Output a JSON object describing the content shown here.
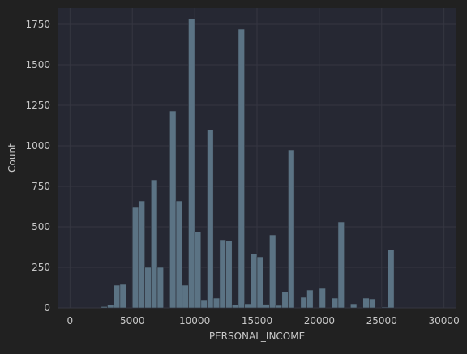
{
  "chart_data": {
    "type": "bar",
    "title": "",
    "xlabel": "PERSONAL_INCOME",
    "ylabel": "Count",
    "xlim": [
      -1000,
      31000
    ],
    "ylim": [
      0,
      1850
    ],
    "xticks": [
      0,
      5000,
      10000,
      15000,
      20000,
      25000,
      30000
    ],
    "yticks": [
      0,
      250,
      500,
      750,
      1000,
      1250,
      1500,
      1750
    ],
    "grid": true,
    "bar_color": "#5b7384",
    "plot_background": "#262833",
    "page_background": "#212121",
    "bin_width": 500,
    "bins": [
      {
        "x": 2750,
        "count": 8
      },
      {
        "x": 3250,
        "count": 20
      },
      {
        "x": 3750,
        "count": 140
      },
      {
        "x": 4250,
        "count": 145
      },
      {
        "x": 5250,
        "count": 620
      },
      {
        "x": 5750,
        "count": 660
      },
      {
        "x": 6250,
        "count": 250
      },
      {
        "x": 6750,
        "count": 790
      },
      {
        "x": 7250,
        "count": 250
      },
      {
        "x": 8250,
        "count": 1215
      },
      {
        "x": 8750,
        "count": 660
      },
      {
        "x": 9250,
        "count": 140
      },
      {
        "x": 9750,
        "count": 1785
      },
      {
        "x": 10250,
        "count": 470
      },
      {
        "x": 10750,
        "count": 50
      },
      {
        "x": 11250,
        "count": 1100
      },
      {
        "x": 11750,
        "count": 60
      },
      {
        "x": 12250,
        "count": 420
      },
      {
        "x": 12750,
        "count": 415
      },
      {
        "x": 13250,
        "count": 20
      },
      {
        "x": 13750,
        "count": 1720
      },
      {
        "x": 14250,
        "count": 25
      },
      {
        "x": 14750,
        "count": 335
      },
      {
        "x": 15250,
        "count": 315
      },
      {
        "x": 15750,
        "count": 22
      },
      {
        "x": 16250,
        "count": 450
      },
      {
        "x": 16750,
        "count": 15
      },
      {
        "x": 17250,
        "count": 100
      },
      {
        "x": 17750,
        "count": 975
      },
      {
        "x": 18750,
        "count": 65
      },
      {
        "x": 19250,
        "count": 110
      },
      {
        "x": 20250,
        "count": 120
      },
      {
        "x": 21250,
        "count": 60
      },
      {
        "x": 21750,
        "count": 530
      },
      {
        "x": 22750,
        "count": 25
      },
      {
        "x": 23750,
        "count": 60
      },
      {
        "x": 24250,
        "count": 55
      },
      {
        "x": 25250,
        "count": 5
      },
      {
        "x": 25750,
        "count": 360
      }
    ]
  }
}
